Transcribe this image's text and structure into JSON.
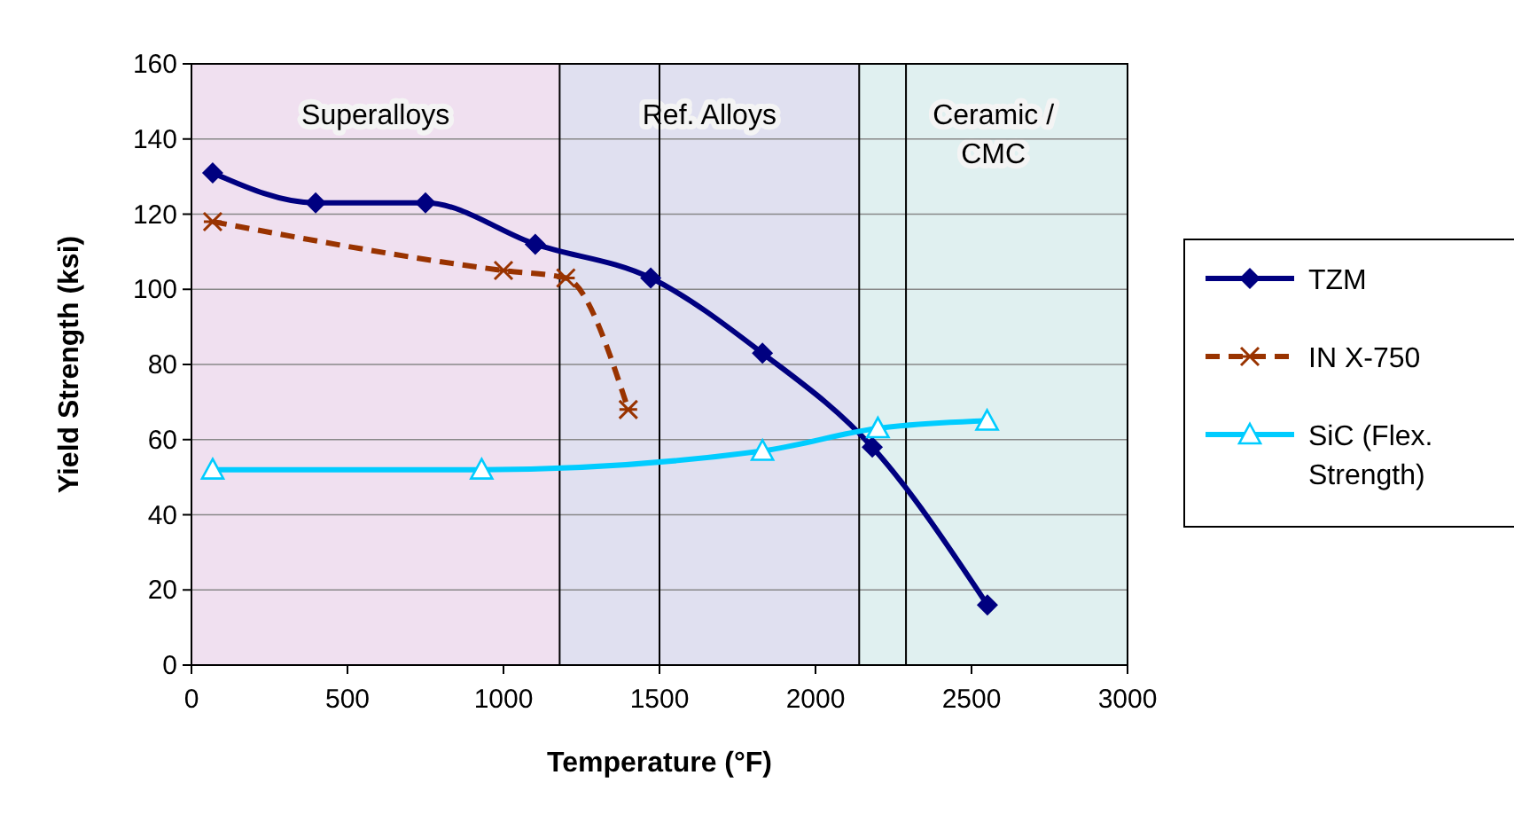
{
  "chart_data": {
    "type": "line",
    "xlabel": "Temperature (°F)",
    "ylabel": "Yield Strength (ksi)",
    "xlim": [
      0,
      3000
    ],
    "xticks": [
      0,
      500,
      1000,
      1500,
      2000,
      2500,
      3000
    ],
    "ylim": [
      0,
      160
    ],
    "yticks": [
      0,
      20,
      40,
      60,
      80,
      100,
      120,
      140,
      160
    ],
    "grid": "y",
    "legend": "right",
    "series": [
      {
        "name": "TZM",
        "color": "#000080",
        "marker": "diamond",
        "line_style": "solid",
        "x": [
          68,
          398,
          750,
          1102,
          1472,
          1830,
          2182,
          2551
        ],
        "values": [
          131,
          123,
          123,
          112,
          103,
          83,
          58,
          16
        ]
      },
      {
        "name": "IN X-750",
        "color": "#993300",
        "marker": "cross",
        "line_style": "dashed",
        "x": [
          68,
          1000,
          1200,
          1400
        ],
        "values": [
          118,
          105,
          103,
          68
        ]
      },
      {
        "name": "SiC (Flex. Strength)",
        "color": "#00ccff",
        "marker": "triangle",
        "line_style": "solid",
        "x": [
          68,
          930,
          1830,
          2200,
          2550
        ],
        "values": [
          52,
          52,
          57,
          63,
          65
        ]
      }
    ],
    "bands": [
      {
        "axis": "x",
        "from": 0,
        "to": 1180,
        "label": "Superalloys",
        "color": "#cc99cc"
      },
      {
        "axis": "x",
        "from": 1180,
        "to": 2140,
        "label": "Ref. Alloys",
        "color": "#9999cc"
      },
      {
        "axis": "x",
        "from": 2140,
        "to": 3000,
        "label": "Ceramic / CMC",
        "color": "#99cccc"
      }
    ],
    "ref_lines": [
      {
        "axis": "x",
        "value": 1180,
        "color": "#000000"
      },
      {
        "axis": "x",
        "value": 1500,
        "color": "#000000"
      },
      {
        "axis": "x",
        "value": 2140,
        "color": "#000000"
      },
      {
        "axis": "x",
        "value": 2290,
        "color": "#000000"
      }
    ]
  }
}
